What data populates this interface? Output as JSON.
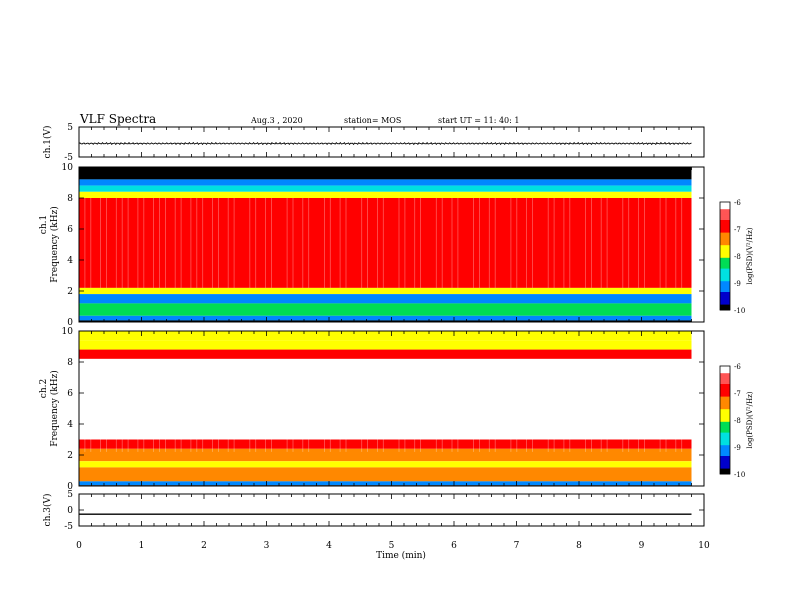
{
  "header": {
    "title": "VLF Spectra",
    "date": "Aug.3 , 2020",
    "station": "station= MOS",
    "start": "start UT = 11: 40: 1"
  },
  "chart_data": [
    {
      "type": "line",
      "name": "ch1-voltage",
      "ylabel": "ch.1(V)",
      "ylim": [
        -5,
        5
      ],
      "yticks": [
        "5",
        "-5"
      ],
      "x": [
        0,
        9.8
      ],
      "y": [
        -0.5,
        -0.5
      ],
      "xlim": [
        0,
        10
      ]
    },
    {
      "type": "heatmap",
      "name": "ch1-spectrogram",
      "ylabel_top": "ch.1",
      "ylabel": "Frequency (kHz)",
      "ylim": [
        0,
        10
      ],
      "yticks": [
        "0",
        "2",
        "4",
        "6",
        "8",
        "10"
      ],
      "xlim": [
        0,
        9.8
      ],
      "bands": [
        {
          "f_lo": 9.2,
          "f_hi": 10.0,
          "logpsd": -10
        },
        {
          "f_lo": 8.8,
          "f_hi": 9.2,
          "logpsd": -9.3
        },
        {
          "f_lo": 8.4,
          "f_hi": 8.8,
          "logpsd": -8.6
        },
        {
          "f_lo": 8.0,
          "f_hi": 8.4,
          "logpsd": -7.8
        },
        {
          "f_lo": 2.2,
          "f_hi": 8.0,
          "logpsd": -7.0
        },
        {
          "f_lo": 1.8,
          "f_hi": 2.2,
          "logpsd": -8.0
        },
        {
          "f_lo": 1.2,
          "f_hi": 1.8,
          "logpsd": -9.2
        },
        {
          "f_lo": 0.4,
          "f_hi": 1.2,
          "logpsd": -8.4
        },
        {
          "f_lo": 0.1,
          "f_hi": 0.4,
          "logpsd": -9.3
        },
        {
          "f_lo": 0.0,
          "f_hi": 0.1,
          "logpsd": -10
        }
      ],
      "colorbar": {
        "label": "log(PSD)(V²/Hz)",
        "range": [
          -10,
          -6
        ],
        "ticks": [
          "-6",
          "-7",
          "-8",
          "-9",
          "-10"
        ]
      }
    },
    {
      "type": "heatmap",
      "name": "ch2-spectrogram",
      "ylabel_top": "ch.2",
      "ylabel": "Frequency (kHz)",
      "ylim": [
        0,
        10
      ],
      "yticks": [
        "0",
        "2",
        "4",
        "6",
        "8",
        "10"
      ],
      "xlim": [
        0,
        9.8
      ],
      "bands": [
        {
          "f_lo": 9.4,
          "f_hi": 10.0,
          "logpsd": -8.0
        },
        {
          "f_lo": 8.8,
          "f_hi": 9.4,
          "logpsd": -7.6
        },
        {
          "f_lo": 8.2,
          "f_hi": 8.8,
          "logpsd": -7.0
        },
        {
          "f_lo": 3.0,
          "f_hi": 8.2,
          "logpsd": -6.1
        },
        {
          "f_lo": 2.4,
          "f_hi": 3.0,
          "logpsd": -6.8
        },
        {
          "f_lo": 1.6,
          "f_hi": 2.4,
          "logpsd": -7.4
        },
        {
          "f_lo": 1.2,
          "f_hi": 1.6,
          "logpsd": -8.0
        },
        {
          "f_lo": 0.3,
          "f_hi": 1.2,
          "logpsd": -7.2
        },
        {
          "f_lo": 0.05,
          "f_hi": 0.3,
          "logpsd": -9.0
        },
        {
          "f_lo": 0.0,
          "f_hi": 0.05,
          "logpsd": -10
        }
      ],
      "colorbar": {
        "label": "log(PSD)(V²/Hz)",
        "range": [
          -10,
          -6
        ],
        "ticks": [
          "-6",
          "-7",
          "-8",
          "-9",
          "-10"
        ]
      }
    },
    {
      "type": "line",
      "name": "ch3-voltage",
      "ylabel": "ch.3(V)",
      "ylim": [
        -5,
        5
      ],
      "yticks": [
        "5",
        "0",
        "-5"
      ],
      "x": [
        0,
        9.8
      ],
      "y": [
        -1.3,
        -1.3
      ],
      "xlim": [
        0,
        10
      ]
    }
  ],
  "xaxis": {
    "label": "Time (min)",
    "range": [
      0,
      10
    ],
    "ticks": [
      "0",
      "1",
      "2",
      "3",
      "4",
      "5",
      "6",
      "7",
      "8",
      "9",
      "10"
    ]
  },
  "colormap": [
    "#000000",
    "#0000cc",
    "#0088ff",
    "#00e0e0",
    "#00dd55",
    "#ffff00",
    "#ff8800",
    "#ff0000",
    "#ff5555",
    "#ffffff"
  ]
}
